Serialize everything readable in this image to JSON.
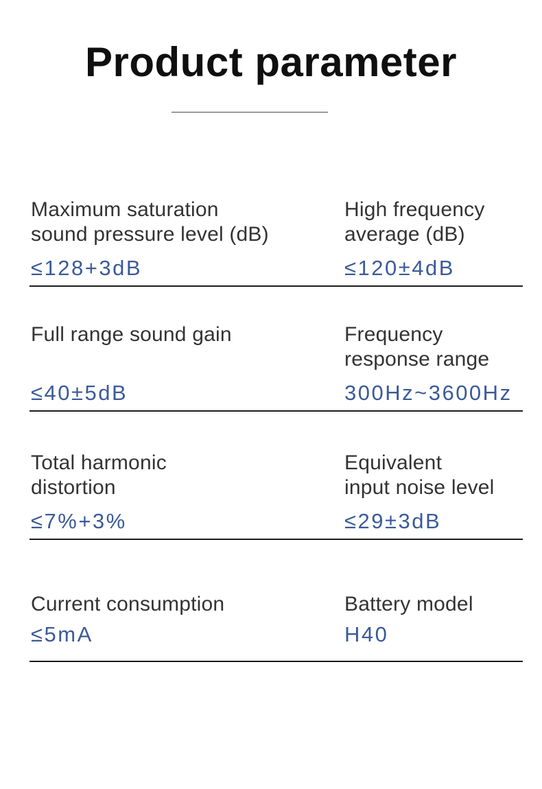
{
  "title": "Product parameter",
  "colors": {
    "title": "#0f0f0f",
    "label": "#333333",
    "value_accent": "#3a5a99",
    "divider": "#1b1b1b",
    "divider_light": "#4a4a4a"
  },
  "rows": [
    {
      "left": {
        "label": "Maximum saturation\nsound pressure level (dB)",
        "value": "≤128+3dB"
      },
      "right": {
        "label": "High frequency\naverage (dB)",
        "value": "≤120±4dB"
      }
    },
    {
      "left": {
        "label": "Full range sound gain",
        "value": "≤40±5dB"
      },
      "right": {
        "label": "Frequency\nresponse range",
        "value": "300Hz~3600Hz"
      }
    },
    {
      "left": {
        "label": "Total harmonic\ndistortion",
        "value": "≤7%+3%"
      },
      "right": {
        "label": "Equivalent\ninput noise level",
        "value": "≤29±3dB"
      }
    },
    {
      "left": {
        "label": "Current consumption",
        "value": "≤5mA"
      },
      "right": {
        "label": "Battery model",
        "value": "H40"
      }
    }
  ]
}
